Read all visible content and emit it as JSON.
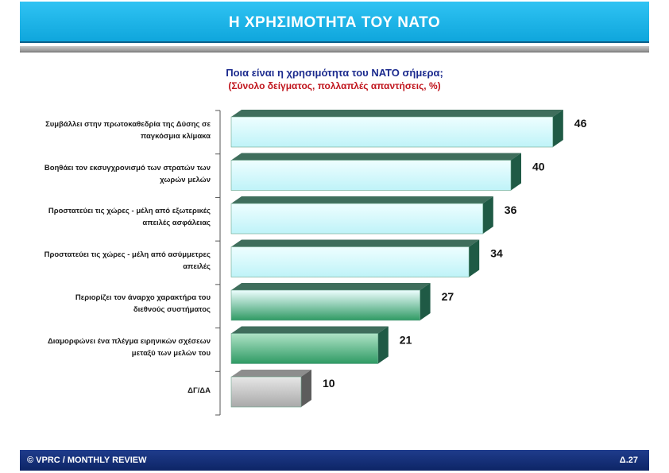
{
  "header": {
    "title": "Η ΧΡΗΣΙΜΟΤΗΤΑ ΤΟΥ ΝΑΤΟ"
  },
  "question": {
    "title": "Ποια είναι η χρησιμότητα του ΝΑΤΟ σήμερα;",
    "subtitle": "(Σύνολο δείγματος, πολλαπλές απαντήσεις, %)"
  },
  "chart_data": {
    "type": "bar",
    "orientation": "horizontal",
    "categories": [
      "Συμβάλλει στην πρωτοκαθεδρία της Δύσης σε παγκόσμια κλίμακα",
      "Βοηθάει τον εκσυγχρονισμό των στρατών των χωρών μελών",
      "Προστατεύει τις χώρες - μέλη από εξωτερικές απειλές ασφάλειας",
      "Προστατεύει τις χώρες - μέλη από ασύμμετρες απειλές",
      "Περιορίζει τον άναρχο χαρακτήρα του διεθνούς συστήματος",
      "Διαμορφώνει ένα πλέγμα ειρηνικών σχέσεων μεταξύ των μελών του",
      "ΔΓ/ΔΑ"
    ],
    "label_lines": [
      [
        "Συμβάλλει στην πρωτοκαθεδρία της Δύσης σε",
        "παγκόσμια κλίμακα"
      ],
      [
        "Βοηθάει τον εκσυγχρονισμό των στρατών των",
        "χωρών μελών"
      ],
      [
        "Προστατεύει τις χώρες - μέλη από εξωτερικές",
        "απειλές ασφάλειας"
      ],
      [
        "Προστατεύει τις χώρες - μέλη από ασύμμετρες",
        "απειλές"
      ],
      [
        "Περιορίζει τον άναρχο χαρακτήρα του",
        "διεθνούς συστήματος"
      ],
      [
        "Διαμορφώνει ένα πλέγμα ειρηνικών σχέσεων",
        "μεταξύ των μελών του"
      ],
      [
        "ΔΓ/ΔΑ"
      ]
    ],
    "values": [
      46,
      40,
      36,
      34,
      27,
      21,
      10
    ],
    "bar_styles": [
      "cyan",
      "cyan",
      "cyan",
      "cyan",
      "cyan-green",
      "green",
      "gray"
    ],
    "xlim": [
      0,
      50
    ],
    "grid": false,
    "legend": "none",
    "colors": {
      "cyan_light": "#eefeff",
      "cyan": "#bff3f8",
      "green_light": "#aee3c6",
      "green": "#2f9a64",
      "gray_light": "#e6e6e6",
      "gray": "#a9a9a9",
      "shadow": "#1f5a45"
    }
  },
  "footer": {
    "left": "© VPRC / MONTHLY REVIEW",
    "right": "Δ.27"
  }
}
